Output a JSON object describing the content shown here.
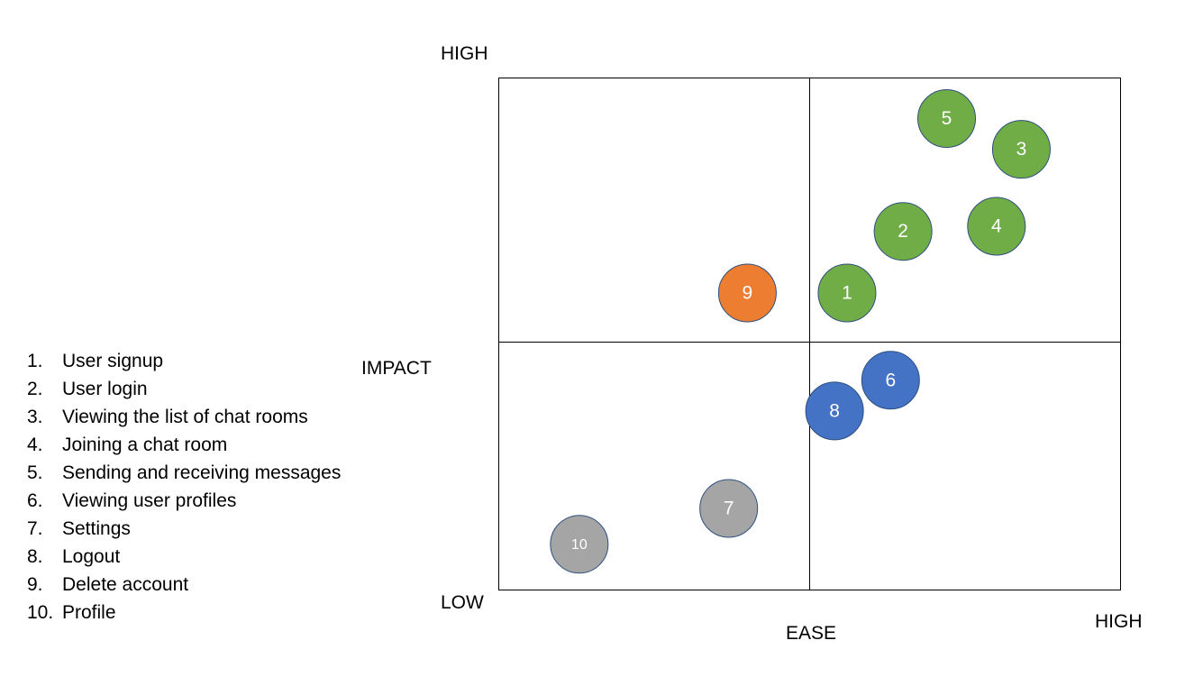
{
  "features": [
    {
      "num": "1.",
      "label": "User signup"
    },
    {
      "num": "2.",
      "label": "User login"
    },
    {
      "num": "3.",
      "label": "Viewing the list of chat rooms"
    },
    {
      "num": "4.",
      "label": "Joining a chat room"
    },
    {
      "num": "5.",
      "label": "Sending and receiving messages"
    },
    {
      "num": "6.",
      "label": "Viewing user profiles"
    },
    {
      "num": "7.",
      "label": "Settings"
    },
    {
      "num": "8.",
      "label": "Logout"
    },
    {
      "num": "9.",
      "label": "Delete account"
    },
    {
      "num": "10.",
      "label": "Profile"
    }
  ],
  "axes": {
    "y_high": "HIGH",
    "y_title": "IMPACT",
    "y_low": "LOW",
    "x_title": "EASE",
    "x_high": "HIGH"
  },
  "colors": {
    "green": "#70AD47",
    "blue": "#4472C4",
    "orange": "#ED7D31",
    "gray": "#A5A5A5",
    "outline": "#2F4F7F"
  },
  "chart_data": {
    "type": "scatter",
    "quadrants": "2x2 grid, midlines at 0.5",
    "x_range": [
      0,
      1
    ],
    "y_range": [
      0,
      1
    ],
    "points": [
      {
        "label": "1",
        "ease": 0.56,
        "impact": 0.58,
        "color": "green"
      },
      {
        "label": "2",
        "ease": 0.65,
        "impact": 0.7,
        "color": "green"
      },
      {
        "label": "3",
        "ease": 0.84,
        "impact": 0.86,
        "color": "green"
      },
      {
        "label": "4",
        "ease": 0.8,
        "impact": 0.71,
        "color": "green"
      },
      {
        "label": "5",
        "ease": 0.72,
        "impact": 0.92,
        "color": "green"
      },
      {
        "label": "6",
        "ease": 0.63,
        "impact": 0.41,
        "color": "blue"
      },
      {
        "label": "7",
        "ease": 0.37,
        "impact": 0.16,
        "color": "gray"
      },
      {
        "label": "8",
        "ease": 0.54,
        "impact": 0.35,
        "color": "blue"
      },
      {
        "label": "9",
        "ease": 0.4,
        "impact": 0.58,
        "color": "orange"
      },
      {
        "label": "10",
        "ease": 0.13,
        "impact": 0.09,
        "color": "gray"
      }
    ]
  }
}
